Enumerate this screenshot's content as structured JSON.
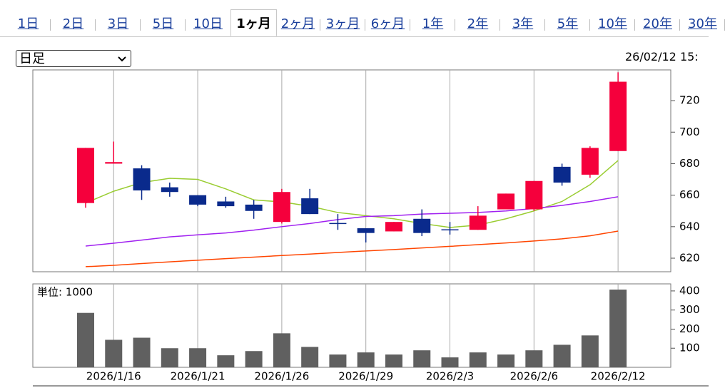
{
  "tabs": [
    "1日",
    "2日",
    "3日",
    "5日",
    "10日",
    "1ヶ月",
    "2ヶ月",
    "3ヶ月",
    "6ヶ月",
    "1年",
    "2年",
    "3年",
    "5年",
    "10年",
    "20年",
    "30年"
  ],
  "active_tab": "1ヶ月",
  "select": "日足",
  "timestamp": "26/02/12 15:",
  "chart_data": [
    {
      "type": "candlestick",
      "up_color": "#f5003c",
      "down_color": "#0a2a8c",
      "open": [
        655,
        680,
        677,
        665,
        660,
        656,
        654,
        643,
        658,
        642,
        639,
        637,
        645,
        638,
        638,
        651,
        651,
        678,
        673,
        688
      ],
      "high": [
        690,
        694,
        679,
        668,
        660,
        659,
        657,
        664,
        664,
        648,
        639,
        643,
        651,
        643,
        653,
        661,
        669,
        680,
        691,
        738
      ],
      "low": [
        652,
        680,
        657,
        659,
        653,
        652,
        645,
        642,
        648,
        638,
        630,
        637,
        634,
        635,
        638,
        651,
        650,
        666,
        671,
        688
      ],
      "close": [
        690,
        681,
        663,
        662,
        654,
        653,
        650,
        662,
        648,
        642,
        636,
        643,
        636,
        638,
        647,
        661,
        669,
        668,
        690,
        732
      ],
      "series": [
        {
          "color": "#9acd32",
          "values": [
            655,
            662.5,
            668,
            670.7,
            670,
            664,
            657,
            655.7,
            653,
            649,
            647,
            645,
            642,
            639.5,
            641,
            645,
            650,
            656,
            666.6,
            682
          ]
        },
        {
          "color": "#a020f0",
          "values": [
            627.7,
            629.5,
            631.5,
            633.5,
            634.8,
            636,
            637.8,
            640,
            642,
            644.5,
            646.5,
            647,
            648,
            648.5,
            649,
            650,
            651.5,
            653.5,
            656,
            659
          ]
        },
        {
          "color": "#ff4500",
          "values": [
            614.6,
            615.5,
            616.6,
            617.7,
            618.7,
            619.7,
            620.7,
            621.7,
            622.6,
            623.6,
            624.6,
            625.5,
            626.5,
            627.5,
            628.6,
            629.7,
            630.9,
            632.3,
            634.2,
            637.2
          ]
        }
      ],
      "ylim": [
        611.4,
        739.5
      ],
      "yticks": [
        620,
        640,
        660,
        680,
        700,
        720
      ]
    },
    {
      "type": "bar",
      "unit_label": "単位: 1000",
      "color": "#606060",
      "categories": [
        null,
        "2026/1/16",
        null,
        null,
        "2026/1/21",
        null,
        null,
        "2026/1/26",
        null,
        null,
        "2026/1/29",
        null,
        null,
        "2026/2/3",
        null,
        null,
        "2026/2/6",
        null,
        null,
        "2026/2/12"
      ],
      "values": [
        285,
        144,
        155,
        100,
        100,
        63,
        85,
        178,
        107,
        67,
        78,
        67,
        89,
        52,
        78,
        67,
        89,
        118,
        167,
        407
      ],
      "ylim": [
        0,
        437
      ],
      "yticks": [
        100,
        200,
        300,
        400
      ]
    }
  ]
}
